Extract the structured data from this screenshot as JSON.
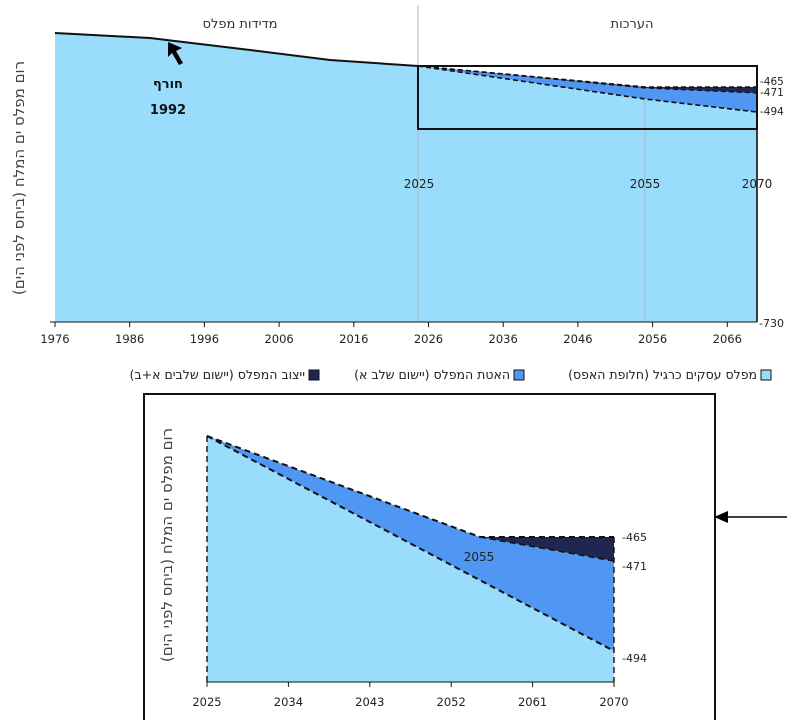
{
  "colors": {
    "base": "#99dcfb",
    "stage_a": "#4f97f2",
    "stage_ab": "#1f2750",
    "outline": "#111111",
    "grid": "#b5b5b5",
    "pointer": "#000000"
  },
  "top": {
    "region_measured": "מדידות מפלס",
    "region_projections": "הערכות",
    "ylabel": "רום מפלס ים המלח (ביחס לפני הים)",
    "annotation_line1": "חורף",
    "annotation_line2": "1992",
    "inner_year_labels": [
      "2025",
      "2055",
      "2070"
    ],
    "right_labels": [
      "-465",
      "-471",
      "-494",
      "-730"
    ],
    "x_ticks": [
      "1976",
      "1986",
      "1996",
      "2006",
      "2016",
      "2026",
      "2036",
      "2046",
      "2056",
      "2066"
    ]
  },
  "legend": [
    {
      "label": "מפלס עסקים כרגיל (חלופת האפס)",
      "color": "#99dcfb"
    },
    {
      "label": "האטת המפלס (יישום שלב א)",
      "color": "#4f97f2"
    },
    {
      "label": "ייצוב המפלס (יישום שלבים א+ב)",
      "color": "#1f2750"
    }
  ],
  "bottom": {
    "ylabel": "רום מפלס ים המלח (ביחס לפני הים)",
    "inner_label": "2055",
    "right_labels": [
      "-465",
      "-471",
      "-494"
    ],
    "x_ticks": [
      "2025",
      "2034",
      "2043",
      "2052",
      "2061",
      "2070"
    ]
  },
  "chart_data": [
    {
      "type": "area",
      "ylim": [
        -730,
        -410
      ],
      "series": [
        {
          "name": "מפלס עסקים כרגיל (חלופת האפס)",
          "x": [
            1976,
            1990,
            2000,
            2010,
            2025,
            2055,
            2070
          ],
          "values": [
            -413,
            -418,
            -425,
            -436,
            -448,
            -480,
            -494
          ]
        },
        {
          "name": "האטת המפלס (יישום שלב א)",
          "x": [
            2025,
            2055,
            2070
          ],
          "values": [
            -448,
            -465,
            -471
          ]
        },
        {
          "name": "ייצוב המפלס (יישום שלבים א+ב)",
          "x": [
            2025,
            2055,
            2070
          ],
          "values": [
            -448,
            -465,
            -465
          ]
        }
      ]
    },
    {
      "type": "area",
      "xlim": [
        2025,
        2070
      ],
      "series": [
        {
          "name": "מפלס עסקים כרגיל (חלופת האפס)",
          "x": [
            2025,
            2070
          ],
          "values": [
            -448,
            -494
          ]
        },
        {
          "name": "האטת המפלס (יישום שלב א)",
          "x": [
            2025,
            2055,
            2070
          ],
          "values": [
            -448,
            -465,
            -471
          ]
        },
        {
          "name": "ייצוב המפלס (יישום שלבים א+ב)",
          "x": [
            2025,
            2055,
            2070
          ],
          "values": [
            -448,
            -465,
            -465
          ]
        }
      ]
    }
  ]
}
